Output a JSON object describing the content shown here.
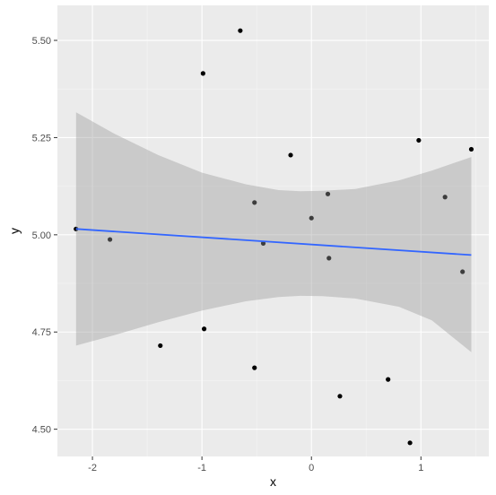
{
  "chart_data": {
    "type": "scatter",
    "title": "",
    "xlabel": "x",
    "ylabel": "y",
    "xlim": [
      -2.32,
      1.62
    ],
    "ylim": [
      4.43,
      5.59
    ],
    "x_ticks": [
      -2,
      -1,
      0,
      1
    ],
    "x_tick_labels": [
      "-2",
      "-1",
      "0",
      "1"
    ],
    "y_ticks": [
      4.5,
      4.75,
      5.0,
      5.25,
      5.5
    ],
    "y_tick_labels": [
      "4.50",
      "4.75",
      "5.00",
      "5.25",
      "5.50"
    ],
    "grid": true,
    "points": [
      {
        "x": -2.15,
        "y": 5.015
      },
      {
        "x": -1.84,
        "y": 4.988
      },
      {
        "x": -1.38,
        "y": 4.715
      },
      {
        "x": -0.99,
        "y": 5.415
      },
      {
        "x": -0.98,
        "y": 4.758
      },
      {
        "x": -0.65,
        "y": 5.525
      },
      {
        "x": -0.52,
        "y": 4.658
      },
      {
        "x": -0.52,
        "y": 5.083
      },
      {
        "x": -0.44,
        "y": 4.978
      },
      {
        "x": -0.19,
        "y": 5.205
      },
      {
        "x": 0.0,
        "y": 5.043
      },
      {
        "x": 0.15,
        "y": 5.105
      },
      {
        "x": 0.16,
        "y": 4.94
      },
      {
        "x": 0.26,
        "y": 4.585
      },
      {
        "x": 0.7,
        "y": 4.628
      },
      {
        "x": 0.9,
        "y": 4.465
      },
      {
        "x": 0.98,
        "y": 5.243
      },
      {
        "x": 1.22,
        "y": 5.097
      },
      {
        "x": 1.38,
        "y": 4.905
      },
      {
        "x": 1.46,
        "y": 5.22
      }
    ],
    "fit_line": {
      "x": [
        -2.15,
        1.46
      ],
      "y": [
        5.015,
        4.948
      ]
    },
    "confidence_band": {
      "x": [
        -2.15,
        -1.8,
        -1.4,
        -1.0,
        -0.6,
        -0.3,
        -0.1,
        0.1,
        0.4,
        0.8,
        1.1,
        1.46
      ],
      "upper": [
        5.315,
        5.26,
        5.205,
        5.16,
        5.13,
        5.115,
        5.112,
        5.113,
        5.118,
        5.14,
        5.165,
        5.2
      ],
      "lower": [
        4.715,
        4.742,
        4.775,
        4.805,
        4.829,
        4.84,
        4.843,
        4.842,
        4.836,
        4.815,
        4.78,
        4.698
      ]
    },
    "colors": {
      "panel": "#ebebeb",
      "grid_major": "#ffffff",
      "grid_minor": "#f5f5f5",
      "points": "#000000",
      "line": "#3366ff",
      "band": "#999999"
    }
  }
}
